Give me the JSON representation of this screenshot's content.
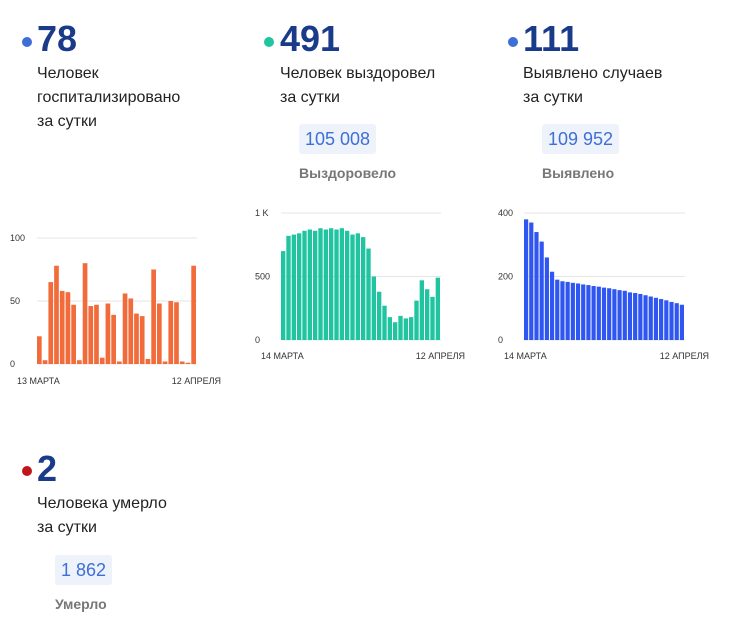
{
  "stats": [
    {
      "number": "78",
      "desc": "Человек\nгоспитализировано\nза сутки",
      "dot_color": "#3d6fd6"
    },
    {
      "number": "491",
      "desc": "Человек выздоровел\nза сутки",
      "total": "105 008",
      "total_label": "Выздоровело",
      "dot_color": "#20c4a0"
    },
    {
      "number": "111",
      "desc": "Выявлено случаев\nза сутки",
      "total": "109 952",
      "total_label": "Выявлено",
      "dot_color": "#3d6fd6"
    },
    {
      "number": "2",
      "desc": "Человека умерло\nза сутки",
      "total": "1 862",
      "total_label": "Умерло",
      "dot_color": "#c0161b"
    }
  ],
  "chart_data": [
    {
      "type": "bar",
      "color": "#f26b3a",
      "ylim": [
        0,
        100
      ],
      "yticks": [
        "0",
        "50",
        "100"
      ],
      "ytick_values": [
        0,
        50,
        100
      ],
      "x_start_label": "13 МАРТА",
      "x_end_label": "12 АПРЕЛЯ",
      "values": [
        22,
        3,
        65,
        78,
        58,
        57,
        47,
        3,
        80,
        46,
        47,
        5,
        48,
        39,
        2,
        56,
        52,
        40,
        38,
        4,
        75,
        48,
        2,
        50,
        49,
        2,
        1,
        78
      ]
    },
    {
      "type": "bar",
      "color": "#20c4a0",
      "ylim": [
        0,
        1000
      ],
      "yticks": [
        "0",
        "500",
        "1 K"
      ],
      "ytick_values": [
        0,
        500,
        1000
      ],
      "x_start_label": "14 МАРТА",
      "x_end_label": "12 АПРЕЛЯ",
      "values": [
        700,
        820,
        830,
        840,
        860,
        870,
        860,
        880,
        870,
        880,
        870,
        880,
        860,
        830,
        840,
        810,
        720,
        500,
        380,
        270,
        180,
        140,
        190,
        170,
        180,
        310,
        470,
        400,
        340,
        491
      ]
    },
    {
      "type": "bar",
      "color": "#2f56f0",
      "ylim": [
        0,
        400
      ],
      "yticks": [
        "0",
        "200",
        "400"
      ],
      "ytick_values": [
        0,
        200,
        400
      ],
      "x_start_label": "14 МАРТА",
      "x_end_label": "12 АПРЕЛЯ",
      "values": [
        380,
        370,
        340,
        310,
        260,
        215,
        190,
        185,
        183,
        180,
        178,
        175,
        173,
        170,
        168,
        165,
        163,
        160,
        157,
        155,
        150,
        148,
        145,
        141,
        137,
        133,
        129,
        125,
        120,
        116,
        111
      ]
    }
  ]
}
